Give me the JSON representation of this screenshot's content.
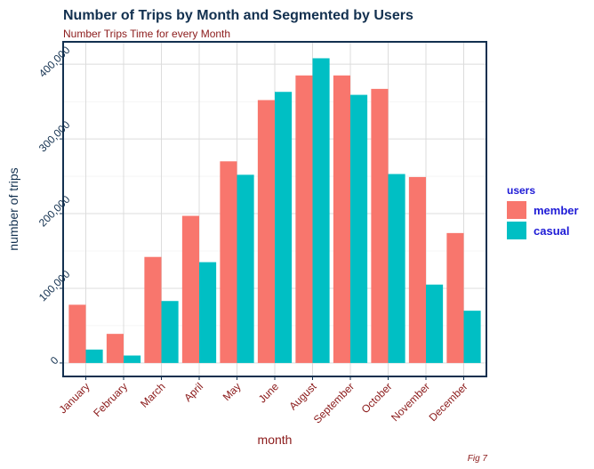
{
  "chart_data": {
    "type": "bar",
    "title": "Number of Trips by Month and Segmented by Users",
    "subtitle": "Number Trips Time for every Month",
    "xlabel": "month",
    "ylabel": "number of trips",
    "caption": "Fig 7",
    "categories": [
      "January",
      "February",
      "March",
      "April",
      "May",
      "June",
      "August",
      "September",
      "October",
      "November",
      "December"
    ],
    "series": [
      {
        "name": "member",
        "color": "#f8766d",
        "values": [
          78000,
          39000,
          142000,
          197000,
          270000,
          352000,
          385000,
          385000,
          367000,
          249000,
          174000
        ]
      },
      {
        "name": "casual",
        "color": "#00bfc4",
        "values": [
          18000,
          10000,
          83000,
          135000,
          252000,
          363000,
          408000,
          359000,
          253000,
          105000,
          70000
        ]
      }
    ],
    "legend_title": "users",
    "legend_position": "right",
    "yticks": [
      0,
      100000,
      200000,
      300000,
      400000
    ],
    "ytick_labels": [
      "0",
      "100,000",
      "200,000",
      "300,000",
      "400,000"
    ],
    "ylim": [
      -18000,
      430000
    ],
    "grid": true
  }
}
